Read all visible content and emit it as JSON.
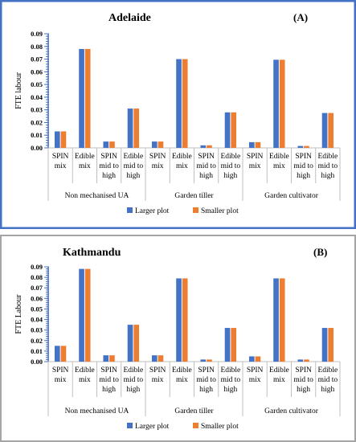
{
  "chart_data": [
    {
      "type": "bar",
      "title": "Adelaide",
      "panel_label": "(A)",
      "ylabel": "FTE labour",
      "ylim": [
        0,
        0.09
      ],
      "yticks": [
        "0.00",
        "0.01",
        "0.02",
        "0.03",
        "0.04",
        "0.05",
        "0.06",
        "0.07",
        "0.08",
        "0.09"
      ],
      "categories": [
        [
          "SPIN",
          "mix"
        ],
        [
          "Edible",
          "mix"
        ],
        [
          "SPIN",
          "mid to",
          "high"
        ],
        [
          "Edible",
          "mid to",
          "high"
        ],
        [
          "SPIN",
          "mix"
        ],
        [
          "Edible",
          "mix"
        ],
        [
          "SPIN",
          "mid to",
          "high"
        ],
        [
          "Edible",
          "mid to",
          "high"
        ],
        [
          "SPIN",
          "mix"
        ],
        [
          "Edible",
          "mix"
        ],
        [
          "SPIN",
          "mid to",
          "high"
        ],
        [
          "Edible",
          "mid to",
          "high"
        ]
      ],
      "groups": [
        "Non mechanised UA",
        "Garden tiller",
        "Garden cultivator"
      ],
      "series": [
        {
          "name": "Larger plot",
          "color": "#4472C4",
          "values": [
            0.013,
            0.078,
            0.005,
            0.031,
            0.005,
            0.07,
            0.002,
            0.028,
            0.0045,
            0.0695,
            0.0015,
            0.0275
          ]
        },
        {
          "name": "Smaller plot",
          "color": "#ED7D31",
          "values": [
            0.013,
            0.078,
            0.005,
            0.031,
            0.005,
            0.07,
            0.002,
            0.028,
            0.0045,
            0.0695,
            0.0015,
            0.0275
          ]
        }
      ],
      "legend": "bottom",
      "border_color": "#4472C4"
    },
    {
      "type": "bar",
      "title": "Kathmandu",
      "panel_label": "(B)",
      "ylabel": "FTE Labour",
      "ylim": [
        0,
        0.09
      ],
      "yticks": [
        "0.00",
        "0.01",
        "0.02",
        "0.03",
        "0.04",
        "0.05",
        "0.06",
        "0.07",
        "0.08",
        "0.09"
      ],
      "categories": [
        [
          "SPIN",
          "mix"
        ],
        [
          "Edible",
          "mix"
        ],
        [
          "SPIN",
          "mid to",
          "high"
        ],
        [
          "Edible",
          "mid to",
          "high"
        ],
        [
          "SPIN",
          "mix"
        ],
        [
          "Edible",
          "mix"
        ],
        [
          "SPIN",
          "mid to",
          "high"
        ],
        [
          "Edible",
          "mid to",
          "high"
        ],
        [
          "SPIN",
          "mix"
        ],
        [
          "Edible",
          "mix"
        ],
        [
          "SPIN",
          "mid to",
          "high"
        ],
        [
          "Edible",
          "mid to",
          "high"
        ]
      ],
      "groups": [
        "Non mechanised UA",
        "Garden tiller",
        "Garden cultivator"
      ],
      "series": [
        {
          "name": "Larger plot",
          "color": "#4472C4",
          "values": [
            0.015,
            0.088,
            0.006,
            0.035,
            0.006,
            0.079,
            0.002,
            0.032,
            0.005,
            0.079,
            0.002,
            0.032
          ]
        },
        {
          "name": "Smaller plot",
          "color": "#ED7D31",
          "values": [
            0.015,
            0.088,
            0.006,
            0.035,
            0.006,
            0.079,
            0.002,
            0.032,
            0.005,
            0.079,
            0.002,
            0.032
          ]
        }
      ],
      "legend": "bottom",
      "border_color": "#A5A5A5"
    }
  ]
}
